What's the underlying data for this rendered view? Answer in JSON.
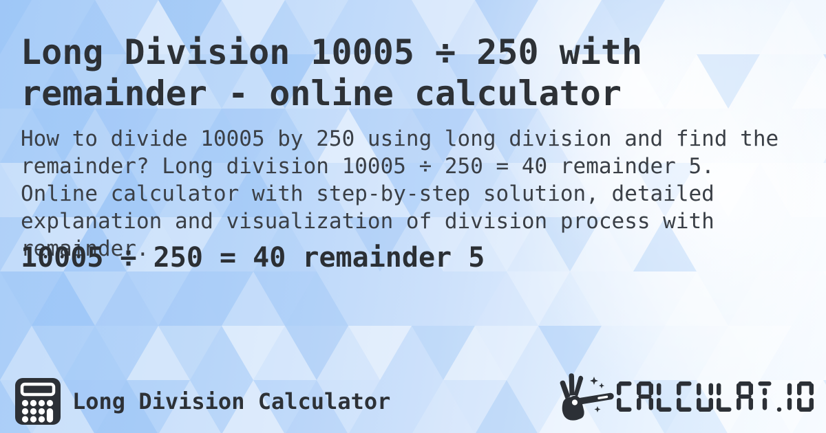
{
  "title": "Long Division 10005 ÷ 250 with remainder - online calculator",
  "description": "How to divide 10005 by 250 using long division and find the remainder? Long division 10005 ÷ 250 = 40 remainder 5. Online calculator with step-by-step solution, detailed explanation and visualization of division process with remainder.",
  "result": "10005 ÷ 250 = 40 remainder 5",
  "calculation": {
    "dividend": "10005",
    "divisor": "250",
    "quotient": "40",
    "remainder": "5"
  },
  "footer": {
    "brand": "Long Division Calculator",
    "logo_text": "CALCULAT.IO"
  },
  "icons": {
    "footer_left": "calculator-icon",
    "footer_right": "hand-magic-wand-icon"
  },
  "colors": {
    "text_title": "#2d3136",
    "text_body": "#3a3f46",
    "icon_dark": "#2c3036",
    "background_base": "#aecff8",
    "mosaic_white": "#ffffff",
    "mosaic_blue": "#7fb4f4"
  }
}
